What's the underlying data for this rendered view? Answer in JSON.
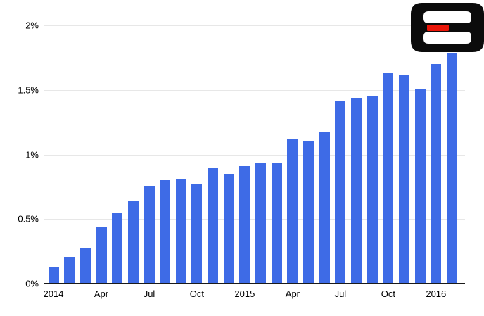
{
  "page": {
    "background": "#ffffff",
    "description": "Monthly bar chart rising from 0% to near 1.8%, Jan 2014 through Feb 2016"
  },
  "chart_data": {
    "type": "bar",
    "title": "",
    "xlabel": "",
    "ylabel": "",
    "categories": [
      "Jan 2014",
      "Feb 2014",
      "Mar 2014",
      "Apr 2014",
      "May 2014",
      "Jun 2014",
      "Jul 2014",
      "Aug 2014",
      "Sep 2014",
      "Oct 2014",
      "Nov 2014",
      "Dec 2014",
      "Jan 2015",
      "Feb 2015",
      "Mar 2015",
      "Apr 2015",
      "May 2015",
      "Jun 2015",
      "Jul 2015",
      "Aug 2015",
      "Sep 2015",
      "Oct 2015",
      "Nov 2015",
      "Dec 2015",
      "Jan 2016",
      "Feb 2016"
    ],
    "values": [
      0.13,
      0.21,
      0.28,
      0.44,
      0.55,
      0.64,
      0.76,
      0.8,
      0.81,
      0.77,
      0.9,
      0.85,
      0.91,
      0.94,
      0.93,
      1.12,
      1.1,
      1.17,
      1.41,
      1.44,
      1.45,
      1.63,
      1.62,
      1.51,
      1.7,
      1.78
    ],
    "unit": "%",
    "ylim": [
      0,
      2
    ],
    "ytick_labels": [
      "0%",
      "0.5%",
      "1%",
      "1.5%",
      "2%"
    ],
    "ytick_values": [
      0,
      0.5,
      1,
      1.5,
      2
    ],
    "xtick_labels": [
      {
        "label": "2014",
        "month_index": 0
      },
      {
        "label": "Apr",
        "month_index": 3
      },
      {
        "label": "Jul",
        "month_index": 6
      },
      {
        "label": "Oct",
        "month_index": 9
      },
      {
        "label": "2015",
        "month_index": 12
      },
      {
        "label": "Apr",
        "month_index": 15
      },
      {
        "label": "Jul",
        "month_index": 18
      },
      {
        "label": "Oct",
        "month_index": 21
      },
      {
        "label": "2016",
        "month_index": 24
      }
    ],
    "legend_position": "none",
    "grid": "horizontal",
    "bar_color": "#3e6be6",
    "grid_color": "#e7e7e7",
    "axis_line_color": "#1a1a1a",
    "tick_text_color": "#000000"
  },
  "logo": {
    "name": "stylized letter B mark with red dash",
    "black": "#0b0b0b",
    "red": "#ea1508",
    "dash_glyph": "-"
  }
}
